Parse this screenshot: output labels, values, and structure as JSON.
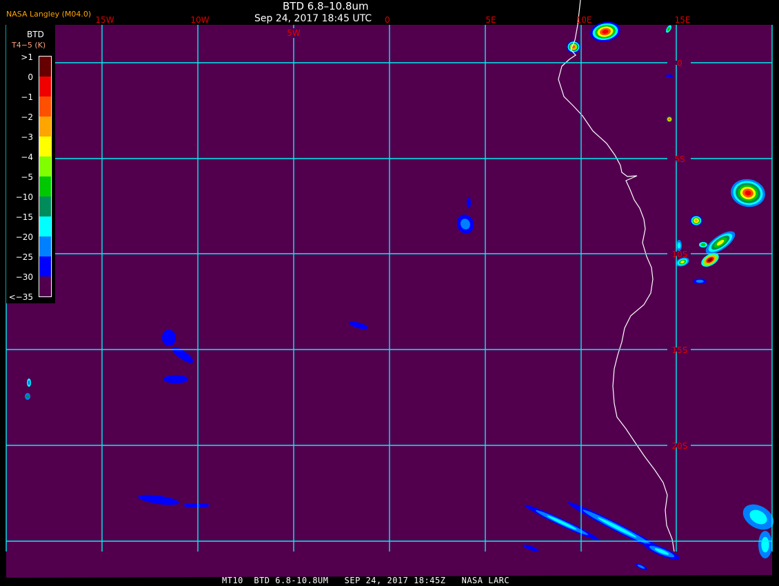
{
  "header": {
    "title": "BTD 6.8–10.8um",
    "subtitle": "Sep 24, 2017 18:45 UTC",
    "credit": "NASA Langley (M04.0)"
  },
  "legend": {
    "title": "BTD",
    "units": "T4−5 (K)",
    "labels": [
      ">1",
      "0",
      "−1",
      "−2",
      "−3",
      "−4",
      "−5",
      "−10",
      "−15",
      "−20",
      "−25",
      "−30",
      "<−35"
    ],
    "colors": [
      "#660000",
      "#f00000",
      "#ff5000",
      "#ffa500",
      "#ffff00",
      "#80ff00",
      "#00c800",
      "#008c5a",
      "#00ffff",
      "#0080ff",
      "#0000ff",
      "#52004e"
    ]
  },
  "map": {
    "background": "#52004e",
    "grid_color": "#00f0f0",
    "coast_color": "#ffffff",
    "lon_labels": [
      "15W",
      "10W",
      "5W",
      "0",
      "5E",
      "10E",
      "15E"
    ],
    "lat_labels": [
      "0",
      "5S",
      "10S",
      "15S",
      "20S"
    ]
  },
  "footer": {
    "text": "MT10  BTD 6.8-10.8UM   SEP 24, 2017 18:45Z   NASA LARC"
  }
}
